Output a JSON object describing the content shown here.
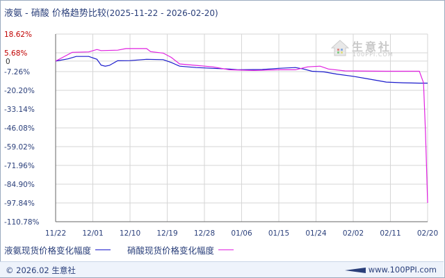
{
  "header": {
    "title": "液氨 - 硝酸 价格趋势比较",
    "product_a": "液氨",
    "separator": "-",
    "product_b": "硝酸",
    "subtitle": "价格趋势比较",
    "date_range": "(2025-11-22 - 2026-02-20)"
  },
  "watermark": {
    "name": "生意社",
    "site": "100PPI.COM"
  },
  "legend": {
    "series_a": "液氨现货价格变化幅度",
    "series_b": "硝酸现货价格变化幅度"
  },
  "footer": {
    "copyright": "© 2026.02 生意社",
    "url": "www.100PPI.com"
  },
  "colors": {
    "series_a": "#1a1acc",
    "series_b": "#e020e0",
    "grid": "#d6d6d6",
    "axis": "#666666",
    "positive_label": "#c00000",
    "negative_label": "#2a3f7a"
  },
  "chart_data": {
    "type": "line",
    "title": "液氨 - 硝酸 价格趋势比较",
    "xlabel": "",
    "ylabel": "",
    "ylim": [
      -110.78,
      18.62
    ],
    "y_ticks": [
      "18.62%",
      "5.68%",
      "0",
      "-7.26%",
      "-20.20%",
      "-33.14%",
      "-46.08%",
      "-59.02%",
      "-71.96%",
      "-84.90%",
      "-97.84%",
      "-110.78%"
    ],
    "y_tick_values": [
      18.62,
      5.68,
      0,
      -7.26,
      -20.2,
      -33.14,
      -46.08,
      -59.02,
      -71.96,
      -84.9,
      -97.84,
      -110.78
    ],
    "x_ticks": [
      "11/22",
      "12/01",
      "12/10",
      "12/19",
      "12/28",
      "01/06",
      "01/15",
      "01/24",
      "02/02",
      "02/11",
      "02/20"
    ],
    "x_tick_days": [
      0,
      9,
      18,
      27,
      36,
      45,
      54,
      63,
      72,
      81,
      90
    ],
    "grid": true,
    "legend_position": "bottom",
    "series": [
      {
        "name": "液氨现货价格变化幅度",
        "points": [
          [
            0,
            0
          ],
          [
            3,
            1.5
          ],
          [
            5,
            3.2
          ],
          [
            8,
            3.2
          ],
          [
            10,
            1.2
          ],
          [
            11,
            -2.8
          ],
          [
            12,
            -3.5
          ],
          [
            13,
            -3.0
          ],
          [
            15,
            0.2
          ],
          [
            18,
            0.3
          ],
          [
            22,
            1.2
          ],
          [
            26,
            1.0
          ],
          [
            28,
            -1.0
          ],
          [
            30,
            -3.5
          ],
          [
            34,
            -4.5
          ],
          [
            38,
            -5.0
          ],
          [
            42,
            -5.5
          ],
          [
            44,
            -6.0
          ],
          [
            50,
            -5.8
          ],
          [
            54,
            -5.0
          ],
          [
            58,
            -4.5
          ],
          [
            60,
            -5.5
          ],
          [
            62,
            -7.0
          ],
          [
            65,
            -7.5
          ],
          [
            68,
            -9.0
          ],
          [
            72,
            -10.5
          ],
          [
            75,
            -12.0
          ],
          [
            78,
            -13.5
          ],
          [
            80,
            -14.5
          ],
          [
            84,
            -15.0
          ],
          [
            88,
            -15.2
          ],
          [
            90,
            -15.2
          ]
        ]
      },
      {
        "name": "硝酸现货价格变化幅度",
        "points": [
          [
            0,
            0
          ],
          [
            2,
            3.0
          ],
          [
            4,
            6.0
          ],
          [
            8,
            6.3
          ],
          [
            10,
            8.0
          ],
          [
            11,
            7.2
          ],
          [
            15,
            7.5
          ],
          [
            17,
            8.6
          ],
          [
            22,
            8.6
          ],
          [
            23,
            6.5
          ],
          [
            26,
            5.5
          ],
          [
            28,
            2.5
          ],
          [
            30,
            -2.0
          ],
          [
            34,
            -3.0
          ],
          [
            38,
            -4.0
          ],
          [
            42,
            -6.0
          ],
          [
            48,
            -6.5
          ],
          [
            54,
            -6.0
          ],
          [
            58,
            -6.0
          ],
          [
            61,
            -4.0
          ],
          [
            64,
            -3.5
          ],
          [
            66,
            -5.5
          ],
          [
            70,
            -6.8
          ],
          [
            80,
            -7.0
          ],
          [
            88,
            -7.0
          ],
          [
            89,
            -15.0
          ],
          [
            89.5,
            -50.0
          ],
          [
            90,
            -97.84
          ]
        ]
      }
    ]
  }
}
